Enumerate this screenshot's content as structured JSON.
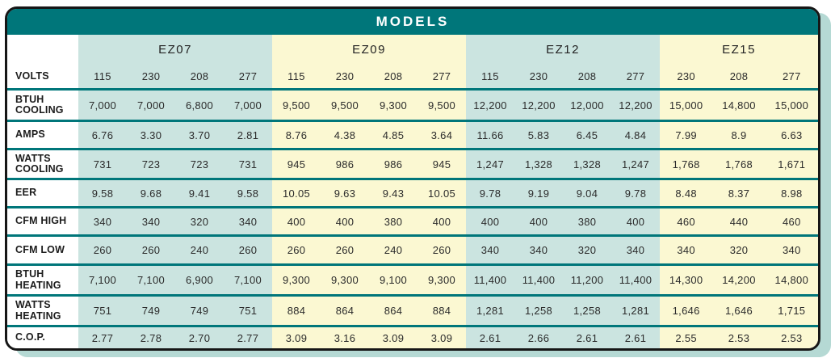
{
  "title": "MODELS",
  "colors": {
    "header_teal": "#00767a",
    "group_blue_bg": "#cbe4e0",
    "group_cream_bg": "#fbf8d2",
    "frame_border": "#161616",
    "drop_shadow": "#b5d9d4",
    "title_text": "#ffffff",
    "body_text": "#2b2b2b"
  },
  "table": {
    "groups": [
      {
        "label": "EZ07",
        "tone": "blue",
        "span": 4
      },
      {
        "label": "EZ09",
        "tone": "cream",
        "span": 4
      },
      {
        "label": "EZ12",
        "tone": "blue",
        "span": 4
      },
      {
        "label": "EZ15",
        "tone": "cream",
        "span": 3
      }
    ],
    "column_tones": [
      "blue",
      "blue",
      "blue",
      "blue",
      "cream",
      "cream",
      "cream",
      "cream",
      "blue",
      "blue",
      "blue",
      "blue",
      "cream",
      "cream",
      "cream"
    ],
    "rows": [
      {
        "label": "VOLTS",
        "values": [
          "115",
          "230",
          "208",
          "277",
          "115",
          "230",
          "208",
          "277",
          "115",
          "230",
          "208",
          "277",
          "230",
          "208",
          "277"
        ]
      },
      {
        "label": "BTUH COOLING",
        "values": [
          "7,000",
          "7,000",
          "6,800",
          "7,000",
          "9,500",
          "9,500",
          "9,300",
          "9,500",
          "12,200",
          "12,200",
          "12,000",
          "12,200",
          "15,000",
          "14,800",
          "15,000"
        ]
      },
      {
        "label": "AMPS",
        "values": [
          "6.76",
          "3.30",
          "3.70",
          "2.81",
          "8.76",
          "4.38",
          "4.85",
          "3.64",
          "11.66",
          "5.83",
          "6.45",
          "4.84",
          "7.99",
          "8.9",
          "6.63"
        ]
      },
      {
        "label": "WATTS COOLING",
        "values": [
          "731",
          "723",
          "723",
          "731",
          "945",
          "986",
          "986",
          "945",
          "1,247",
          "1,328",
          "1,328",
          "1,247",
          "1,768",
          "1,768",
          "1,671"
        ]
      },
      {
        "label": "EER",
        "values": [
          "9.58",
          "9.68",
          "9.41",
          "9.58",
          "10.05",
          "9.63",
          "9.43",
          "10.05",
          "9.78",
          "9.19",
          "9.04",
          "9.78",
          "8.48",
          "8.37",
          "8.98"
        ]
      },
      {
        "label": "CFM HIGH",
        "values": [
          "340",
          "340",
          "320",
          "340",
          "400",
          "400",
          "380",
          "400",
          "400",
          "400",
          "380",
          "400",
          "460",
          "440",
          "460"
        ]
      },
      {
        "label": "CFM LOW",
        "values": [
          "260",
          "260",
          "240",
          "260",
          "260",
          "260",
          "240",
          "260",
          "340",
          "340",
          "320",
          "340",
          "340",
          "320",
          "340"
        ]
      },
      {
        "label": "BTUH HEATING",
        "values": [
          "7,100",
          "7,100",
          "6,900",
          "7,100",
          "9,300",
          "9,300",
          "9,100",
          "9,300",
          "11,400",
          "11,400",
          "11,200",
          "11,400",
          "14,300",
          "14,200",
          "14,800"
        ]
      },
      {
        "label": "WATTS HEATING",
        "values": [
          "751",
          "749",
          "749",
          "751",
          "884",
          "864",
          "864",
          "884",
          "1,281",
          "1,258",
          "1,258",
          "1,281",
          "1,646",
          "1,646",
          "1,715"
        ]
      },
      {
        "label": "C.O.P.",
        "values": [
          "2.77",
          "2.78",
          "2.70",
          "2.77",
          "3.09",
          "3.16",
          "3.09",
          "3.09",
          "2.61",
          "2.66",
          "2.61",
          "2.61",
          "2.55",
          "2.53",
          "2.53"
        ]
      }
    ]
  }
}
